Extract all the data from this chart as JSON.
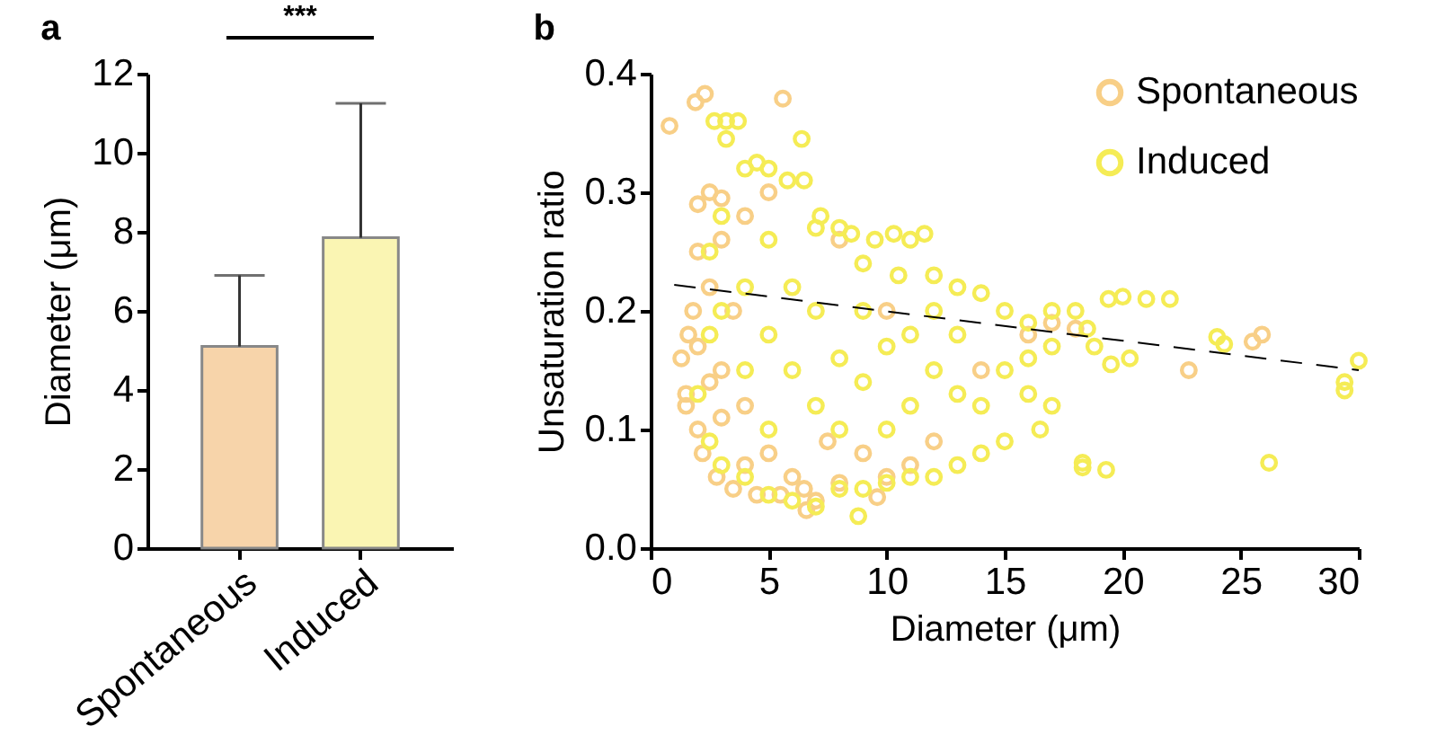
{
  "chart_data": [
    {
      "type": "bar",
      "title": "a",
      "categories": [
        "Spontaneous",
        "Induced"
      ],
      "values": [
        5.1,
        7.85
      ],
      "colors": [
        "#f7d4aa",
        "#faf5b3"
      ],
      "errors": [
        [
          5.1,
          6.9
        ],
        [
          7.85,
          11.25
        ]
      ],
      "ylabel": "Diameter (μm)",
      "ylim": [
        0,
        12
      ],
      "yticks": [
        0,
        2,
        4,
        6,
        8,
        10,
        12
      ],
      "annotations": [
        "***"
      ]
    },
    {
      "type": "scatter",
      "title": "b",
      "xlabel": "Diameter (μm)",
      "ylabel": "Unsaturation ratio",
      "xlim": [
        0,
        30
      ],
      "xticks": [
        0,
        5,
        10,
        15,
        20,
        25,
        30
      ],
      "ylim": [
        0,
        0.4
      ],
      "yticks": [
        {
          "value": 0,
          "label": "0.0"
        },
        {
          "value": 0.1,
          "label": "0.1"
        },
        {
          "value": 0.2,
          "label": "0.2"
        },
        {
          "value": 0.3,
          "label": "0.3"
        },
        {
          "value": 0.4,
          "label": "0.4"
        }
      ],
      "legend": "top right",
      "marker": "circle",
      "line_style": "dashed",
      "series": [
        {
          "name": "Spontaneous",
          "color": "#f8cf87",
          "x": [
            0.8,
            1.9,
            2.3,
            5.6,
            1.5,
            1.3,
            1.5,
            2,
            2.5,
            3,
            2,
            1.8,
            1.6,
            2,
            2.2,
            2.8,
            3.5,
            4.5,
            5.5,
            6.5,
            7,
            8,
            9.6,
            10,
            11,
            3,
            3.5,
            2.5,
            4,
            5,
            6,
            3,
            4,
            5,
            2.5,
            2,
            3,
            4,
            7.5,
            9,
            12,
            14,
            16,
            17,
            18,
            22.8,
            25.5,
            25.9,
            10,
            8,
            6.6
          ],
          "values": [
            0.356,
            0.376,
            0.383,
            0.379,
            0.13,
            0.16,
            0.12,
            0.29,
            0.3,
            0.295,
            0.25,
            0.2,
            0.18,
            0.1,
            0.08,
            0.06,
            0.05,
            0.045,
            0.045,
            0.05,
            0.04,
            0.055,
            0.043,
            0.06,
            0.07,
            0.15,
            0.2,
            0.22,
            0.12,
            0.08,
            0.06,
            0.26,
            0.28,
            0.3,
            0.14,
            0.17,
            0.11,
            0.07,
            0.09,
            0.08,
            0.09,
            0.15,
            0.18,
            0.19,
            0.185,
            0.15,
            0.174,
            0.18,
            0.2,
            0.26,
            0.032
          ]
        },
        {
          "name": "Induced",
          "color": "#f5ec55",
          "x": [
            2.7,
            3.2,
            3.7,
            3.2,
            6.4,
            4,
            4.5,
            5,
            5.8,
            6.5,
            7.2,
            8,
            8.5,
            9.5,
            10.3,
            11,
            11.6,
            7,
            9,
            10.5,
            12,
            13,
            14,
            15,
            16,
            17,
            18,
            18.5,
            19.4,
            20,
            21,
            22,
            18.8,
            19.5,
            20.3,
            24,
            24.3,
            29.4,
            29.4,
            30,
            26.2,
            18.3,
            18.3,
            19.3,
            16.5,
            17,
            16,
            15,
            14,
            13,
            12,
            11,
            10,
            9,
            8,
            7,
            6,
            8.8,
            5,
            4,
            3,
            2.5,
            2,
            2.5,
            2.5,
            3,
            4,
            5,
            6,
            7,
            8,
            9,
            10,
            11,
            12,
            13,
            14,
            15,
            16,
            17,
            5,
            6,
            7,
            8,
            9,
            10,
            11,
            12,
            13,
            4,
            3,
            5
          ],
          "values": [
            0.36,
            0.36,
            0.36,
            0.345,
            0.345,
            0.32,
            0.325,
            0.32,
            0.31,
            0.31,
            0.28,
            0.27,
            0.265,
            0.26,
            0.265,
            0.26,
            0.265,
            0.27,
            0.24,
            0.23,
            0.23,
            0.22,
            0.215,
            0.2,
            0.19,
            0.2,
            0.2,
            0.185,
            0.21,
            0.212,
            0.21,
            0.21,
            0.17,
            0.155,
            0.16,
            0.178,
            0.172,
            0.14,
            0.133,
            0.158,
            0.072,
            0.072,
            0.068,
            0.066,
            0.1,
            0.12,
            0.13,
            0.09,
            0.08,
            0.07,
            0.06,
            0.06,
            0.055,
            0.05,
            0.05,
            0.035,
            0.04,
            0.027,
            0.045,
            0.06,
            0.07,
            0.09,
            0.13,
            0.18,
            0.25,
            0.28,
            0.22,
            0.18,
            0.15,
            0.12,
            0.1,
            0.14,
            0.17,
            0.12,
            0.15,
            0.18,
            0.12,
            0.15,
            0.16,
            0.17,
            0.1,
            0.22,
            0.2,
            0.16,
            0.2,
            0.1,
            0.18,
            0.2,
            0.13,
            0.15,
            0.2,
            0.26
          ]
        },
        {
          "type": "line",
          "color": "#000000",
          "marker": "none",
          "x": [
            1,
            30
          ],
          "values": [
            0.222,
            0.15
          ]
        }
      ]
    }
  ]
}
